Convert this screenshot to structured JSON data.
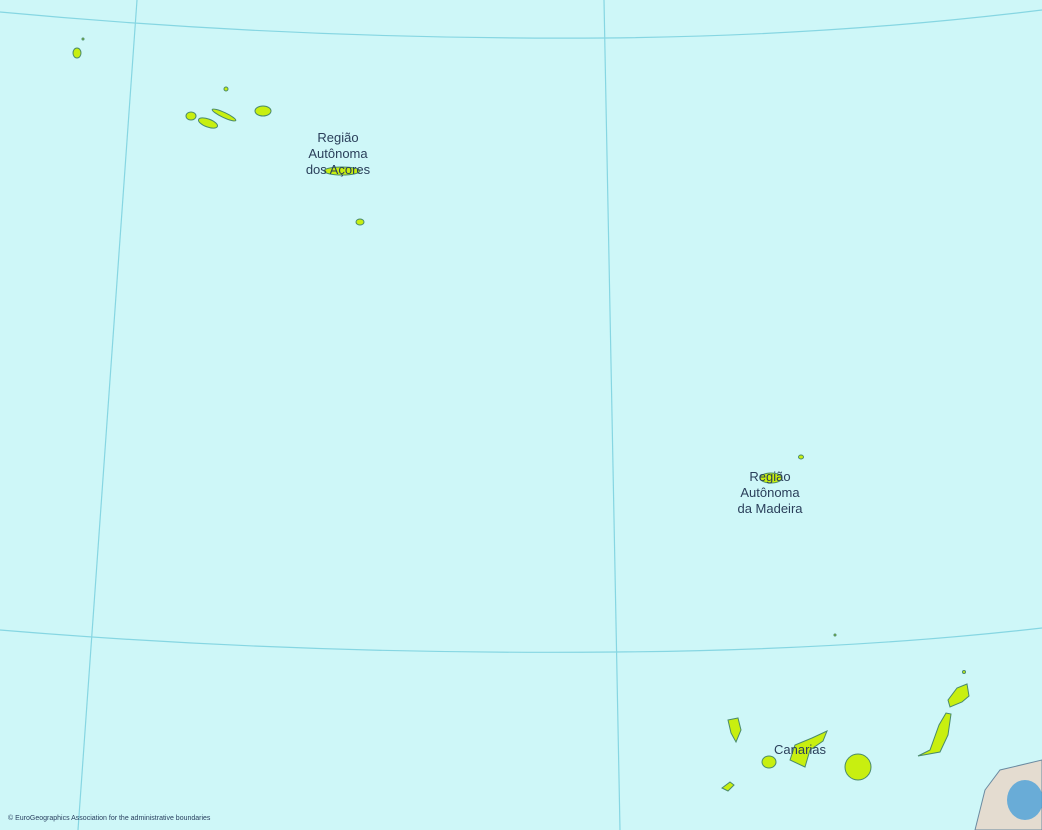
{
  "map": {
    "colors": {
      "sea": "#cef7f8",
      "land": "#c8ef10",
      "coast": "#4a8a6a",
      "graticule": "#86d6e2",
      "mainland": "#e4dcd0"
    },
    "labels": {
      "azores": "Região\nAutônoma\ndos Açores",
      "madeira": "Região\nAutônoma\nda Madeira",
      "canarias": "Canarias"
    },
    "credit": "© EuroGeographics Association for the administrative boundaries"
  }
}
